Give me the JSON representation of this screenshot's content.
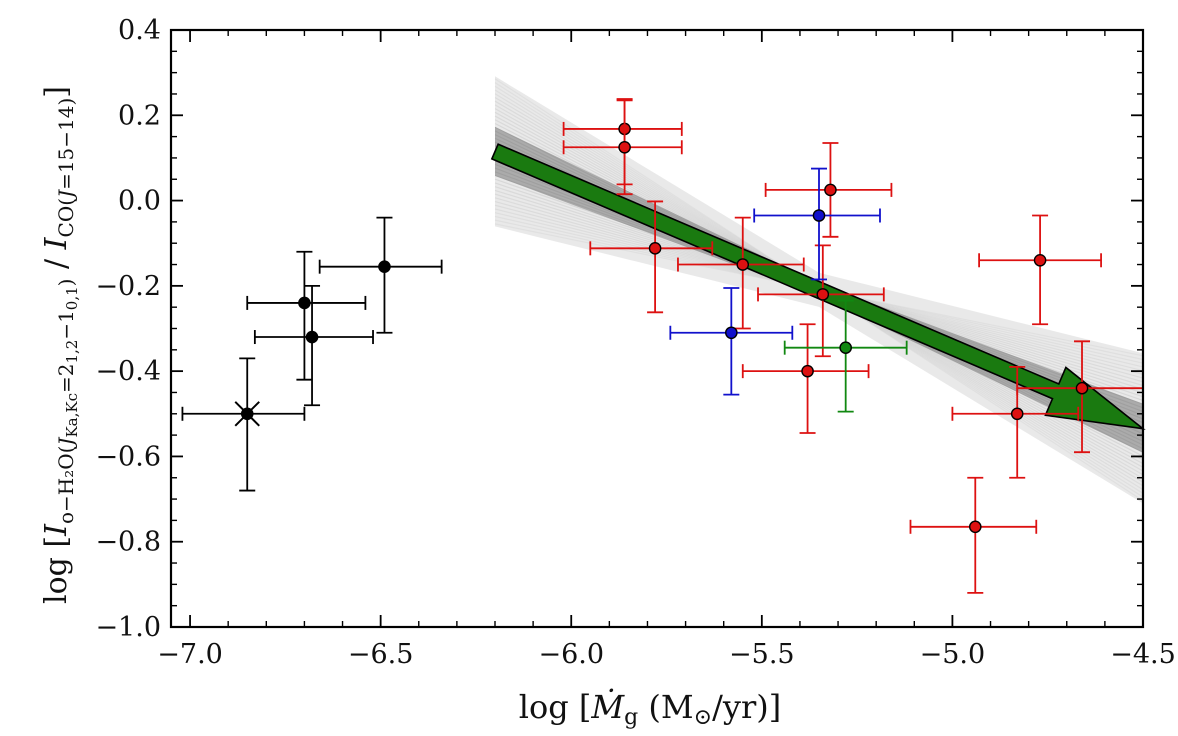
{
  "chart_data": {
    "type": "scatter",
    "xlabel": "log [Ṁg (M⊙/yr)]",
    "ylabel": "log [I o−H2O(J Ka,Kc=2 1,2−1 0,1) / I CO(J=15−14)]",
    "xlim": [
      -7.05,
      -4.5
    ],
    "ylim": [
      -1.0,
      0.4
    ],
    "x_ticks": [
      -7.0,
      -6.5,
      -6.0,
      -5.5,
      -5.0,
      -4.5
    ],
    "x_tick_labels": [
      "−7.0",
      "−6.5",
      "−6.0",
      "−5.5",
      "−5.0",
      "−4.5"
    ],
    "y_ticks": [
      0.4,
      0.2,
      0.0,
      -0.2,
      -0.4,
      -0.6,
      -0.8,
      -1.0
    ],
    "y_tick_labels": [
      "0.4",
      "0.2",
      "0.0",
      "−0.2",
      "−0.4",
      "−0.6",
      "−0.8",
      "−1.0"
    ],
    "colors": {
      "black": "#000000",
      "red": "#dd1111",
      "blue": "#1111cc",
      "green": "#118811",
      "arrow": "#1a7a10",
      "band": "#9a9a9a"
    },
    "series": [
      {
        "name": "black",
        "color": "#000000",
        "points": [
          {
            "x": -6.85,
            "y": -0.5,
            "xerr": [
              0.17,
              0.15
            ],
            "yerr": [
              0.18,
              0.13
            ],
            "cross": true
          },
          {
            "x": -6.7,
            "y": -0.24,
            "xerr": [
              0.15,
              0.16
            ],
            "yerr": [
              0.18,
              0.12
            ]
          },
          {
            "x": -6.68,
            "y": -0.32,
            "xerr": [
              0.15,
              0.16
            ],
            "yerr": [
              0.16,
              0.12
            ]
          },
          {
            "x": -6.49,
            "y": -0.155,
            "xerr": [
              0.17,
              0.15
            ],
            "yerr": [
              0.155,
              0.115
            ]
          }
        ]
      },
      {
        "name": "red",
        "color": "#dd1111",
        "points": [
          {
            "x": -5.86,
            "y": 0.168,
            "xerr": [
              0.16,
              0.15
            ],
            "yerr": [
              0.13,
              0.07
            ]
          },
          {
            "x": -5.86,
            "y": 0.125,
            "xerr": [
              0.16,
              0.15
            ],
            "yerr": [
              0.11,
              0.11
            ]
          },
          {
            "x": -5.78,
            "y": -0.112,
            "xerr": [
              0.17,
              0.15
            ],
            "yerr": [
              0.15,
              0.11
            ]
          },
          {
            "x": -5.55,
            "y": -0.15,
            "xerr": [
              0.17,
              0.16
            ],
            "yerr": [
              0.15,
              0.11
            ]
          },
          {
            "x": -5.38,
            "y": -0.4,
            "xerr": [
              0.17,
              0.16
            ],
            "yerr": [
              0.145,
              0.11
            ]
          },
          {
            "x": -5.34,
            "y": -0.22,
            "xerr": [
              0.17,
              0.16
            ],
            "yerr": [
              0.145,
              0.115
            ]
          },
          {
            "x": -5.32,
            "y": 0.025,
            "xerr": [
              0.17,
              0.16
            ],
            "yerr": [
              0.11,
              0.11
            ]
          },
          {
            "x": -4.94,
            "y": -0.765,
            "xerr": [
              0.17,
              0.16
            ],
            "yerr": [
              0.155,
              0.115
            ]
          },
          {
            "x": -4.83,
            "y": -0.5,
            "xerr": [
              0.17,
              0.16
            ],
            "yerr": [
              0.15,
              0.11
            ]
          },
          {
            "x": -4.77,
            "y": -0.14,
            "xerr": [
              0.16,
              0.16
            ],
            "yerr": [
              0.15,
              0.105
            ]
          },
          {
            "x": -4.66,
            "y": -0.44,
            "xerr": [
              0.17,
              0.16
            ],
            "yerr": [
              0.15,
              0.11
            ]
          }
        ]
      },
      {
        "name": "blue",
        "color": "#1111cc",
        "points": [
          {
            "x": -5.58,
            "y": -0.31,
            "xerr": [
              0.16,
              0.16
            ],
            "yerr": [
              0.145,
              0.105
            ]
          },
          {
            "x": -5.35,
            "y": -0.035,
            "xerr": [
              0.17,
              0.16
            ],
            "yerr": [
              0.15,
              0.11
            ]
          }
        ]
      },
      {
        "name": "green",
        "color": "#118811",
        "points": [
          {
            "x": -5.28,
            "y": -0.345,
            "xerr": [
              0.16,
              0.16
            ],
            "yerr": [
              0.15,
              0.11
            ]
          }
        ]
      }
    ],
    "fit": {
      "slope": -0.382,
      "intercept": -2.253,
      "x_range": [
        -6.2,
        -4.5
      ]
    },
    "arrow": {
      "from": [
        -6.2,
        0.115
      ],
      "to": [
        -4.5,
        -0.535
      ]
    }
  }
}
